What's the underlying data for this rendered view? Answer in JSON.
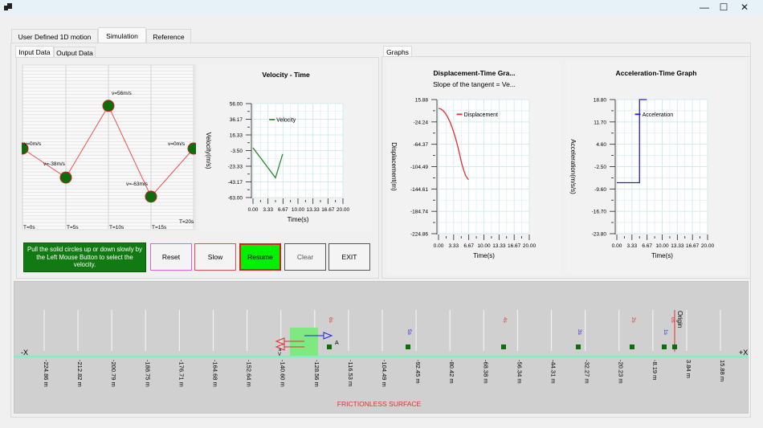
{
  "window": {
    "icons": {
      "app": "app-icon",
      "minimize": "minimize-icon",
      "maximize": "maximize-icon",
      "close": "close-icon"
    },
    "minimize_glyph": "—",
    "maximize_glyph": "☐",
    "close_glyph": "✕"
  },
  "tabs": [
    {
      "label": "User Defined 1D motion",
      "active": false
    },
    {
      "label": "Simulation",
      "active": true
    },
    {
      "label": "Reference",
      "active": false
    }
  ],
  "subtabs": [
    {
      "label": "Input Data",
      "active": true
    },
    {
      "label": "Output Data",
      "active": false
    }
  ],
  "graphs_tab": {
    "label": "Graphs"
  },
  "input_grid": {
    "points": [
      {
        "t": 0,
        "v": 0,
        "label": "v=0m/s"
      },
      {
        "t": 5,
        "v": -38,
        "label": "v=-38m/s"
      },
      {
        "t": 10,
        "v": 56,
        "label": "v=56m/s"
      },
      {
        "t": 15,
        "v": -63,
        "label": "v=-63m/s"
      },
      {
        "t": 20,
        "v": 0,
        "label": "v=0m/s"
      }
    ],
    "time_labels": [
      "T=0s",
      "T=5s",
      "T=10s",
      "T=15s",
      "T=20s"
    ],
    "point_color": "#0a6e0a",
    "line_color": "#f05050"
  },
  "chart_data": [
    {
      "type": "line",
      "title": "Velocity - Time",
      "xlabel": "Time(s)",
      "ylabel": "Velocity(m/s)",
      "xlim": [
        0,
        20
      ],
      "ylim": [
        -63,
        56
      ],
      "xticks": [
        "0.00",
        "3.33",
        "6.67",
        "10.00",
        "13.33",
        "16.67",
        "20.00"
      ],
      "yticks": [
        "56.00",
        "36.17",
        "16.33",
        "-3.50",
        "-23.33",
        "-43.17",
        "-63.00"
      ],
      "legend": "Velocity",
      "legend_position": "top-left",
      "color": "#2e8b2e",
      "series": [
        {
          "name": "Velocity",
          "x": [
            0,
            5,
            6.6
          ],
          "y": [
            0,
            -38,
            -7.9
          ]
        }
      ]
    },
    {
      "type": "line",
      "title": "Displacement-Time  Gra...",
      "subtitle": "Slope of the tangent = Ve...",
      "xlabel": "Time(s)",
      "ylabel": "Displacement(m)",
      "xlim": [
        0,
        20
      ],
      "ylim": [
        -224.86,
        15.88
      ],
      "xticks": [
        "0.00",
        "3.33",
        "6.67",
        "10.00",
        "13.33",
        "16.67",
        "20.00"
      ],
      "yticks": [
        "15.88",
        "-24.24",
        "-64.37",
        "-104.49",
        "-144.61",
        "-184.74",
        "-224.86"
      ],
      "legend": "Displacement",
      "legend_position": "top-left",
      "color": "#e03030",
      "series": [
        {
          "name": "Displacement",
          "x": [
            0,
            0.5,
            1,
            1.5,
            2,
            2.5,
            3,
            3.5,
            4,
            4.5,
            5,
            5.5,
            6,
            6.6
          ],
          "y": [
            0,
            -1,
            -3.8,
            -8.6,
            -15.2,
            -23.8,
            -34.2,
            -46.6,
            -60.8,
            -77,
            -95,
            -110,
            -121,
            -128
          ]
        }
      ]
    },
    {
      "type": "line",
      "title": "Acceleration-Time Graph",
      "xlabel": "Time(s)",
      "ylabel": "Acceleration(m/s/s)",
      "xlim": [
        0,
        20
      ],
      "ylim": [
        -23.8,
        18.8
      ],
      "xticks": [
        "0.00",
        "3.33",
        "6.67",
        "10.00",
        "13.33",
        "16.67",
        "20.00"
      ],
      "yticks": [
        "18.80",
        "11.70",
        "4.60",
        "-2.50",
        "-9.60",
        "-16.70",
        "-23.80"
      ],
      "legend": "Acceleration",
      "legend_position": "top-left",
      "color": "#2020e0",
      "series": [
        {
          "name": "Acceleration",
          "x": [
            0,
            5,
            5,
            6.6
          ],
          "y": [
            -7.6,
            -7.6,
            18.8,
            18.8
          ]
        }
      ]
    }
  ],
  "buttons": {
    "info": "Pull the solid circles up or down slowly by the Left Mouse Button to select the velocity.",
    "reset": "Reset",
    "slow": "Slow",
    "resume": "Resume",
    "clear": "Clear",
    "exit": "EXIT"
  },
  "track": {
    "neg_label": "-X",
    "pos_label": "+X",
    "surface_label": "FRICTIONLESS SURFACE",
    "origin_label": "Origin",
    "ticks": [
      "-224.86 m",
      "-212.82 m",
      "-200.79 m",
      "-188.75 m",
      "-176.71 m",
      "-164.68 m",
      "-152.64 m",
      "-140.60 m",
      "-128.56 m",
      "-116.53 m",
      "-104.49 m",
      "-92.45 m",
      "-80.42 m",
      "-68.38 m",
      "-56.34 m",
      "-44.31 m",
      "-32.27 m",
      "-20.23 m",
      "-8.19 m",
      "3.84 m",
      "15.88 m"
    ],
    "markers": [
      {
        "label": "6s",
        "color": "#e03030"
      },
      {
        "label": "5s",
        "color": "#2020e0"
      },
      {
        "label": "4s",
        "color": "#e03030"
      },
      {
        "label": "3s",
        "color": "#2020e0"
      },
      {
        "label": "2s",
        "color": "#e03030"
      },
      {
        "label": "1s",
        "color": "#2020e0"
      },
      {
        "label": "0s",
        "color": "#e03030"
      }
    ],
    "point_a": "A",
    "v_label": "V",
    "a_label": "a"
  }
}
